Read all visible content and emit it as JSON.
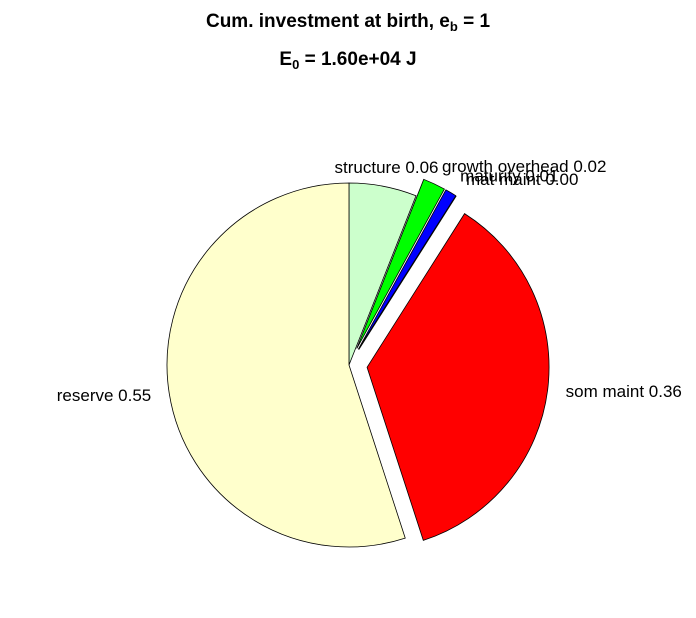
{
  "chart_data": {
    "type": "pie",
    "title": [
      "Cum. investment at birth, e",
      "b",
      " = 1"
    ],
    "subtitle": [
      "E",
      "0",
      " = 1.60e+04 J"
    ],
    "categories": [
      "structure",
      "growth overhead",
      "maturity",
      "mat maint",
      "som maint",
      "reserve"
    ],
    "values": [
      0.06,
      0.02,
      0.01,
      0.0,
      0.36,
      0.55
    ],
    "value_labels": [
      "structure 0.06",
      "growth overhead 0.02",
      "maturity 0.01",
      "mat maint 0.00",
      "som maint 0.36",
      "reserve 0.55"
    ],
    "colors": [
      "#ccffcc",
      "#00ff00",
      "#0000ff",
      "#ff00ff",
      "#ff0000",
      "#ffffcc"
    ],
    "explode": [
      false,
      true,
      true,
      true,
      true,
      false
    ]
  }
}
